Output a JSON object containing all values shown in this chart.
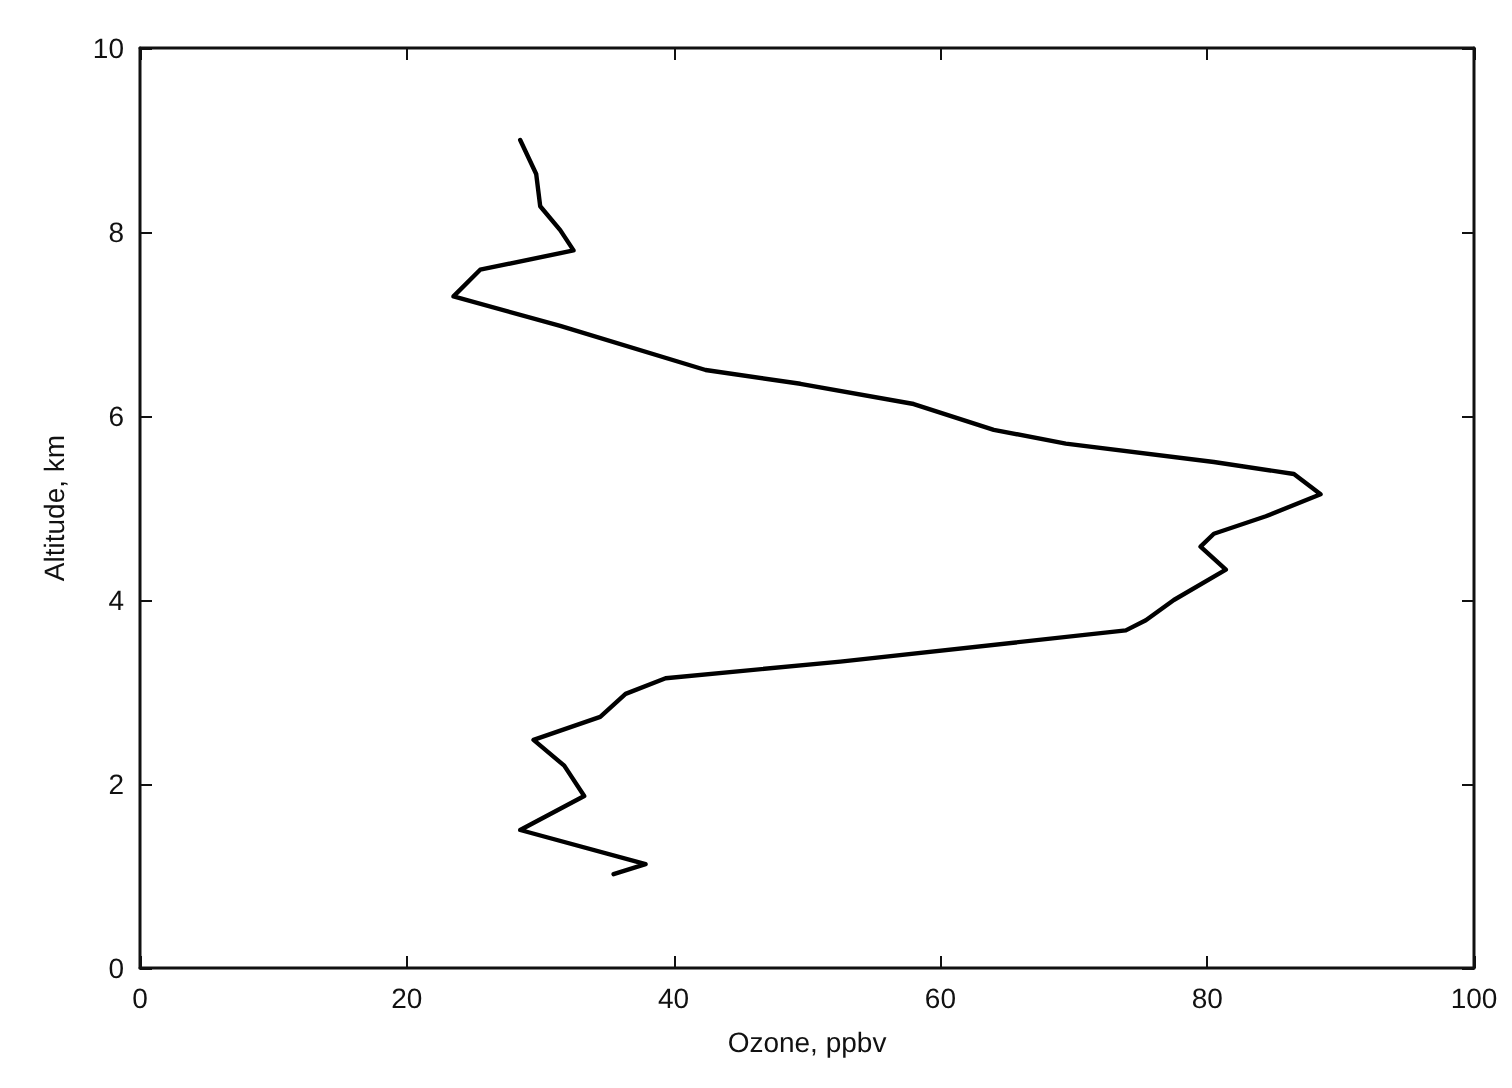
{
  "chart_data": {
    "type": "line",
    "xlabel": "Ozone, ppbv",
    "ylabel": "Altitude, km",
    "x": [
      35.5,
      37.9,
      28.5,
      33.3,
      31.8,
      29.5,
      34.5,
      36.4,
      39.4,
      52.5,
      73.9,
      75.4,
      77.5,
      81.4,
      79.5,
      80.5,
      84.4,
      88.5,
      86.5,
      80.5,
      69.4,
      64,
      58,
      49.5,
      42.4,
      31.5,
      23.5,
      25.5,
      32.5,
      31.5,
      30,
      29.7,
      28.5
    ],
    "values": [
      1.02,
      1.13,
      1.5,
      1.87,
      2.2,
      2.48,
      2.73,
      2.98,
      3.15,
      3.33,
      3.67,
      3.78,
      4.0,
      4.33,
      4.58,
      4.72,
      4.91,
      5.15,
      5.37,
      5.5,
      5.7,
      5.85,
      6.13,
      6.35,
      6.5,
      6.98,
      7.3,
      7.59,
      7.8,
      8.02,
      8.28,
      8.63,
      9.0
    ],
    "color": "#000000",
    "marker": "none",
    "line_style": "solid",
    "grid": false,
    "xlim": [
      0,
      100
    ],
    "xticks": [
      0,
      20,
      40,
      60,
      80,
      100
    ],
    "ylim": [
      0,
      10
    ],
    "yticks": [
      0,
      2,
      4,
      6,
      8,
      10
    ]
  }
}
